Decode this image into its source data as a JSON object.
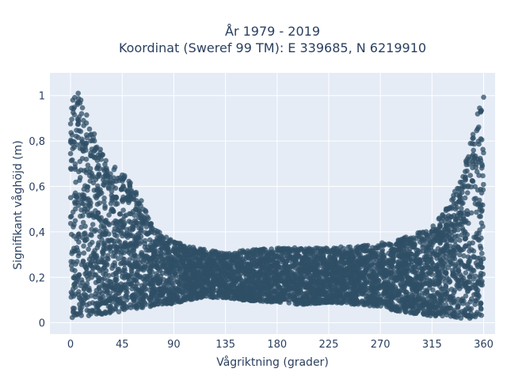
{
  "chart_data": {
    "type": "scatter",
    "title_line1": "År 1979 - 2019",
    "title_line2": "Koordinat (Sweref 99 TM): E 339685, N 6219910",
    "xlabel": "Vågriktning (grader)",
    "ylabel": "Signifikant våghöjd (m)",
    "xlim": [
      -18,
      370
    ],
    "ylim": [
      -0.05,
      1.1
    ],
    "x_ticks": [
      0,
      45,
      90,
      135,
      180,
      225,
      270,
      315,
      360
    ],
    "y_ticks": [
      0,
      0.2,
      0.4,
      0.6,
      0.8,
      1
    ],
    "y_tick_labels": [
      "0",
      "0,2",
      "0,4",
      "0,6",
      "0,8",
      "1"
    ],
    "grid": true,
    "plot_bgcolor": "#e5ecf6",
    "marker_color": "#2f4f66",
    "x_range_data": [
      0,
      360
    ],
    "envelope": {
      "x": [
        0,
        3,
        6,
        10,
        20,
        30,
        45,
        55,
        60,
        65,
        70,
        75,
        80,
        90,
        100,
        120,
        135,
        150,
        180,
        200,
        225,
        250,
        270,
        285,
        300,
        315,
        330,
        340,
        345,
        350,
        355,
        358,
        360
      ],
      "upper": [
        0.96,
        1.05,
        1.05,
        0.97,
        0.84,
        0.72,
        0.66,
        0.6,
        0.56,
        0.5,
        0.45,
        0.41,
        0.39,
        0.36,
        0.34,
        0.32,
        0.31,
        0.32,
        0.33,
        0.33,
        0.33,
        0.34,
        0.35,
        0.37,
        0.39,
        0.42,
        0.52,
        0.64,
        0.74,
        0.83,
        0.93,
        0.99,
        1.0
      ],
      "lower": [
        0.02,
        0.02,
        0.03,
        0.03,
        0.03,
        0.04,
        0.05,
        0.05,
        0.06,
        0.07,
        0.07,
        0.08,
        0.08,
        0.08,
        0.1,
        0.11,
        0.11,
        0.1,
        0.09,
        0.08,
        0.09,
        0.08,
        0.07,
        0.05,
        0.04,
        0.03,
        0.03,
        0.02,
        0.02,
        0.01,
        0.01,
        0.01,
        0.01
      ]
    }
  }
}
